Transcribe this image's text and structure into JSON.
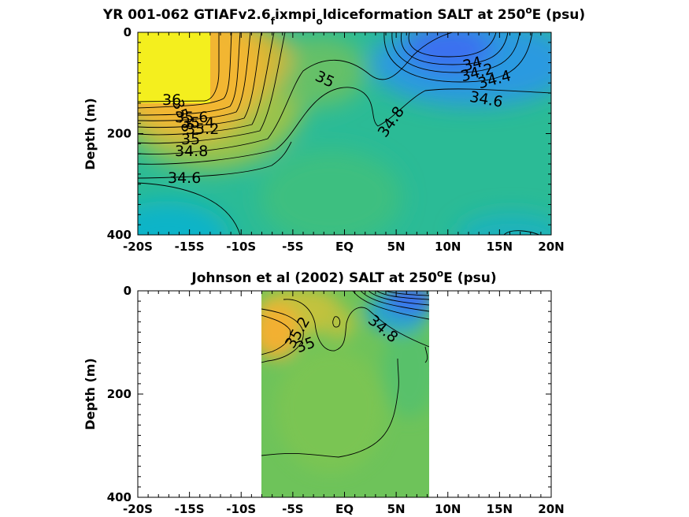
{
  "figure": {
    "panels": [
      {
        "title_main": "YR 001-062 GTIAFv2.6",
        "title_sub1": "f",
        "title_mid": "ixmpi",
        "title_sub2": "o",
        "title_tail": "ldiceformation SALT at 250",
        "title_sup": "o",
        "title_end": "E (psu)",
        "ylabel": "Depth (m)"
      },
      {
        "title_main": "Johnson et al (2002) SALT at 250",
        "title_sup": "o",
        "title_end": "E (psu)",
        "ylabel": "Depth (m)"
      }
    ],
    "x_ticks": [
      "-20S",
      "-15S",
      "-10S",
      "-5S",
      "EQ",
      "5N",
      "10N",
      "15N",
      "20N"
    ],
    "y_ticks": [
      "0",
      "200",
      "400"
    ],
    "colors": {
      "axis": "#000000",
      "contour": "#000000"
    }
  },
  "chart_data": [
    {
      "type": "heatmap",
      "title": "YR 001-062 GTIAFv2.6_fixmpi_oldiceformation SALT at 250°E (psu)",
      "xlabel": "",
      "ylabel": "Depth (m)",
      "xlim": [
        -20,
        20
      ],
      "ylim": [
        400,
        0
      ],
      "x_tick_values": [
        -20,
        -15,
        -10,
        -5,
        0,
        5,
        10,
        15,
        20
      ],
      "y_tick_values": [
        0,
        200,
        400
      ],
      "colormap": "parula",
      "contour_levels": [
        34.0,
        34.2,
        34.4,
        34.6,
        34.8,
        35.0,
        35.2,
        35.4,
        35.6,
        35.8,
        36.0
      ],
      "contour_labels": [
        "36",
        "35.8",
        "35.6",
        "35.4",
        "35.2",
        "35",
        "34.8",
        "34.6",
        "35",
        "34.8",
        "34",
        "34.2",
        "34.4",
        "34.6"
      ],
      "features": [
        {
          "name": "high-salinity core",
          "lat": -17,
          "depth": 60,
          "salinity": 36.0
        },
        {
          "name": "low-salinity surface pool",
          "lat": 12,
          "depth": 40,
          "salinity": 34.0
        }
      ]
    },
    {
      "type": "heatmap",
      "title": "Johnson et al (2002) SALT at 250°E (psu)",
      "xlabel": "",
      "ylabel": "Depth (m)",
      "xlim": [
        -20,
        20
      ],
      "ylim": [
        400,
        0
      ],
      "data_lat_range": [
        -8,
        8.5
      ],
      "x_tick_values": [
        -20,
        -15,
        -10,
        -5,
        0,
        5,
        10,
        15,
        20
      ],
      "y_tick_values": [
        0,
        200,
        400
      ],
      "colormap": "parula",
      "contour_labels": [
        "35.2",
        "35",
        "34.8"
      ],
      "features": [
        {
          "name": "high-salinity core",
          "lat": -7,
          "depth": 85,
          "salinity": 35.3
        },
        {
          "name": "low-salinity surface pool",
          "lat": 7,
          "depth": 15,
          "salinity": 34.0
        }
      ]
    }
  ]
}
